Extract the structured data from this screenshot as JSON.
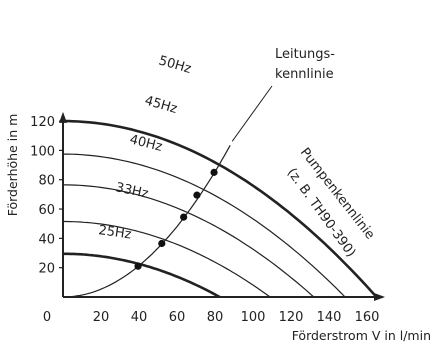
{
  "chart_data": {
    "type": "line",
    "title": "",
    "xlabel": "Förderstrom V in l/min",
    "ylabel": "Förderhöhe in m",
    "xlim": [
      0,
      170
    ],
    "ylim": [
      0,
      127
    ],
    "x_ticks": [
      "0",
      "20",
      "40",
      "60",
      "80",
      "100",
      "120",
      "140",
      "160"
    ],
    "y_ticks": [
      "20",
      "40",
      "60",
      "80",
      "100",
      "120"
    ],
    "grid": false,
    "series": [
      {
        "name": "50Hz",
        "H0": 120,
        "Qmax": 165,
        "bold": true
      },
      {
        "name": "45Hz",
        "H0": 97.5,
        "Qmax": 148.5,
        "bold": false
      },
      {
        "name": "40Hz",
        "H0": 76.5,
        "Qmax": 132,
        "bold": false
      },
      {
        "name": "33Hz",
        "H0": 51.5,
        "Qmax": 109,
        "bold": false
      },
      {
        "name": "25Hz",
        "H0": 29.5,
        "Qmax": 82.5,
        "bold": true
      }
    ],
    "system_curve": {
      "k": 0.01336,
      "x_max": 88,
      "intersections": [
        {
          "x": 39.5,
          "y": 21
        },
        {
          "x": 52,
          "y": 36.5
        },
        {
          "x": 63.5,
          "y": 54.5
        },
        {
          "x": 70.5,
          "y": 69.5
        },
        {
          "x": 79.5,
          "y": 85
        }
      ]
    },
    "annotations": {
      "system_curve_label_line1": "Leitungs-",
      "system_curve_label_line2": "kennlinie",
      "pump_curve_label_line1": "Pumpenkennlinie",
      "pump_curve_label_line2": "(z. B. TH90-390)"
    }
  }
}
